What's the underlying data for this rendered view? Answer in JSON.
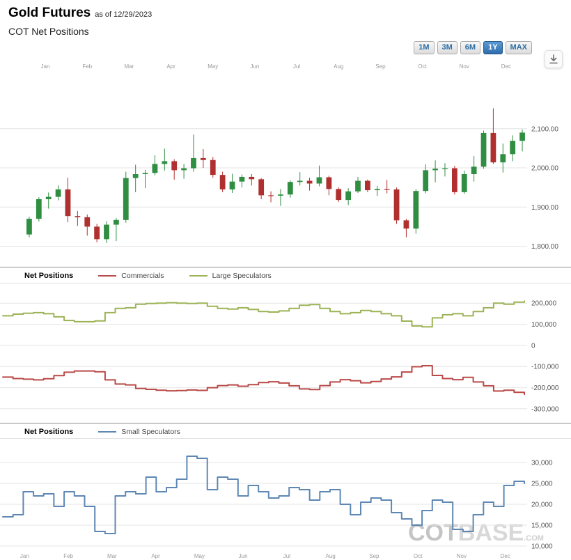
{
  "header": {
    "title": "Gold Futures",
    "as_of": "as of 12/29/2023",
    "subtitle": "COT Net Positions"
  },
  "toolbar": {
    "ranges": [
      {
        "label": "1M",
        "active": false
      },
      {
        "label": "3M",
        "active": false
      },
      {
        "label": "6M",
        "active": false
      },
      {
        "label": "1Y",
        "active": true
      },
      {
        "label": "MAX",
        "active": false
      }
    ]
  },
  "watermark": {
    "cot": "COT",
    "base": "BASE",
    "dotcom": ".COM"
  },
  "colors": {
    "grid": "#e4e4e4",
    "tick_text": "#555555",
    "axis_label_text": "#9a9a9a",
    "active_button": "#3c7fc0",
    "button_text": "#2d6da3"
  },
  "chart_data": [
    {
      "type": "candlestick",
      "title": "Gold Futures price (USD)",
      "x_labels": [
        "Jan",
        "Feb",
        "Mar",
        "Apr",
        "May",
        "Jun",
        "Jul",
        "Aug",
        "Sep",
        "Oct",
        "Nov",
        "Dec"
      ],
      "x_labels_position": "top",
      "ylim": [
        1760,
        2240
      ],
      "y_ticks": [
        {
          "value": 2100,
          "label": "2,100.00"
        },
        {
          "value": 2000,
          "label": "2,000.00"
        },
        {
          "value": 1900,
          "label": "1,900.00"
        },
        {
          "value": 1800,
          "label": "1,800.00"
        }
      ],
      "colors": {
        "up": "#2f8e41",
        "down": "#b03030"
      },
      "ohlc": [
        [
          1830,
          1875,
          1823,
          1870
        ],
        [
          1870,
          1925,
          1863,
          1920
        ],
        [
          1920,
          1937,
          1896,
          1926
        ],
        [
          1926,
          1955,
          1917,
          1945
        ],
        [
          1945,
          1975,
          1861,
          1877
        ],
        [
          1877,
          1890,
          1852,
          1874
        ],
        [
          1874,
          1881,
          1827,
          1850
        ],
        [
          1850,
          1857,
          1810,
          1818
        ],
        [
          1818,
          1864,
          1808,
          1855
        ],
        [
          1855,
          1872,
          1813,
          1867
        ],
        [
          1867,
          1990,
          1860,
          1974
        ],
        [
          1974,
          2008,
          1938,
          1984
        ],
        [
          1984,
          1995,
          1948,
          1987
        ],
        [
          1987,
          2032,
          1981,
          2010
        ],
        [
          2010,
          2049,
          1993,
          2017
        ],
        [
          2017,
          2022,
          1970,
          1994
        ],
        [
          1994,
          2010,
          1972,
          1999
        ],
        [
          1999,
          2085,
          1990,
          2025
        ],
        [
          2025,
          2048,
          2000,
          2020
        ],
        [
          2020,
          2028,
          1975,
          1982
        ],
        [
          1982,
          1990,
          1938,
          1945
        ],
        [
          1945,
          1985,
          1936,
          1965
        ],
        [
          1965,
          1983,
          1950,
          1977
        ],
        [
          1977,
          1984,
          1955,
          1971
        ],
        [
          1971,
          1974,
          1920,
          1930
        ],
        [
          1930,
          1940,
          1912,
          1929
        ],
        [
          1929,
          1946,
          1903,
          1932
        ],
        [
          1932,
          1968,
          1924,
          1964
        ],
        [
          1964,
          1989,
          1955,
          1967
        ],
        [
          1967,
          1975,
          1942,
          1960
        ],
        [
          1960,
          2006,
          1953,
          1976
        ],
        [
          1976,
          1980,
          1930,
          1946
        ],
        [
          1946,
          1950,
          1913,
          1918
        ],
        [
          1918,
          1948,
          1905,
          1940
        ],
        [
          1940,
          1977,
          1936,
          1967
        ],
        [
          1967,
          1970,
          1938,
          1943
        ],
        [
          1943,
          1954,
          1928,
          1946
        ],
        [
          1946,
          1969,
          1935,
          1945
        ],
        [
          1945,
          1950,
          1857,
          1866
        ],
        [
          1866,
          1870,
          1823,
          1845
        ],
        [
          1845,
          1946,
          1832,
          1941
        ],
        [
          1941,
          2009,
          1935,
          1994
        ],
        [
          1994,
          2019,
          1963,
          1998
        ],
        [
          1998,
          2012,
          1978,
          1999
        ],
        [
          1999,
          2005,
          1932,
          1938
        ],
        [
          1938,
          1993,
          1934,
          1984
        ],
        [
          1984,
          2030,
          1965,
          2003
        ],
        [
          2003,
          2095,
          1998,
          2089
        ],
        [
          2089,
          2152,
          2010,
          2014
        ],
        [
          2014,
          2062,
          1988,
          2035
        ],
        [
          2035,
          2083,
          2017,
          2069
        ],
        [
          2069,
          2098,
          2042,
          2090
        ]
      ]
    },
    {
      "type": "line",
      "line_style": "step",
      "title": "Net Positions",
      "legend": [
        {
          "name": "Commercials",
          "color": "#b94a48"
        },
        {
          "name": "Large Speculators",
          "color": "#9cb356"
        }
      ],
      "ylim": [
        -320000,
        260000
      ],
      "y_ticks": [
        {
          "value": 200000,
          "label": "200,000"
        },
        {
          "value": 100000,
          "label": "100,000"
        },
        {
          "value": 0,
          "label": "0"
        },
        {
          "value": -100000,
          "label": "-100,000"
        },
        {
          "value": -200000,
          "label": "-200,000"
        },
        {
          "value": -300000,
          "label": "-300,000"
        }
      ],
      "series": [
        {
          "name": "Commercials",
          "values": [
            -150000,
            -157000,
            -160000,
            -163000,
            -158000,
            -143000,
            -127000,
            -121000,
            -121000,
            -125000,
            -163000,
            -183000,
            -187000,
            -204000,
            -208000,
            -212000,
            -215000,
            -214000,
            -211000,
            -213000,
            -200000,
            -190000,
            -187000,
            -193000,
            -186000,
            -176000,
            -172000,
            -178000,
            -191000,
            -206000,
            -209000,
            -190000,
            -173000,
            -162000,
            -167000,
            -177000,
            -171000,
            -159000,
            -149000,
            -126000,
            -101000,
            -96000,
            -142000,
            -157000,
            -162000,
            -151000,
            -173000,
            -191000,
            -216000,
            -212000,
            -222000,
            -232000
          ]
        },
        {
          "name": "Large Speculators",
          "values": [
            140000,
            148000,
            152000,
            155000,
            150000,
            135000,
            118000,
            112000,
            112000,
            116000,
            155000,
            175000,
            178000,
            195000,
            198000,
            200000,
            202000,
            200000,
            198000,
            200000,
            185000,
            175000,
            172000,
            178000,
            170000,
            160000,
            158000,
            163000,
            175000,
            190000,
            193000,
            175000,
            160000,
            150000,
            155000,
            165000,
            160000,
            150000,
            140000,
            115000,
            92000,
            88000,
            130000,
            145000,
            150000,
            140000,
            160000,
            178000,
            200000,
            195000,
            205000,
            210000
          ]
        }
      ]
    },
    {
      "type": "line",
      "line_style": "step",
      "title": "Net Positions",
      "x_labels": [
        "Jan",
        "Feb",
        "Mar",
        "Apr",
        "May",
        "Jun",
        "Jul",
        "Aug",
        "Sep",
        "Oct",
        "Nov",
        "Dec"
      ],
      "x_labels_position": "bottom",
      "legend": [
        {
          "name": "Small Speculators",
          "color": "#5e87b3"
        }
      ],
      "ylim": [
        9000,
        34000
      ],
      "y_ticks": [
        {
          "value": 30000,
          "label": "30,000"
        },
        {
          "value": 25000,
          "label": "25,000"
        },
        {
          "value": 20000,
          "label": "20,000"
        },
        {
          "value": 15000,
          "label": "15,000"
        },
        {
          "value": 10000,
          "label": "10,000"
        }
      ],
      "series": [
        {
          "name": "Small Speculators",
          "values": [
            17000,
            17500,
            23000,
            22000,
            22500,
            19500,
            23000,
            22000,
            19500,
            13500,
            13000,
            22000,
            23000,
            22500,
            26500,
            23000,
            24000,
            26000,
            31500,
            31000,
            23500,
            26500,
            26000,
            22000,
            24500,
            23000,
            21500,
            22000,
            24000,
            23500,
            21000,
            23000,
            23500,
            20000,
            17500,
            20500,
            21500,
            21000,
            18000,
            16500,
            15000,
            18500,
            21000,
            20500,
            14000,
            13500,
            17500,
            20500,
            19500,
            24500,
            25500,
            25000
          ]
        }
      ]
    }
  ]
}
